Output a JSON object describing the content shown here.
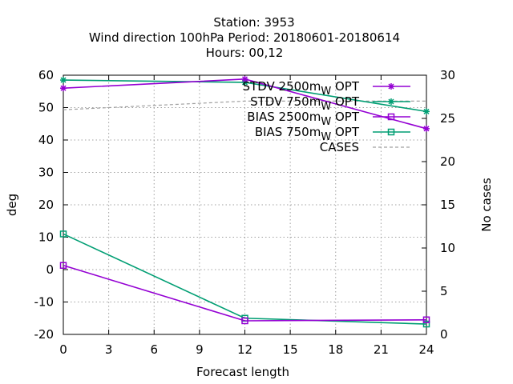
{
  "chart_data": {
    "type": "line",
    "title_lines": [
      "Station:     3953",
      "Wind direction 100hPa   Period: 20180601-20180614",
      "Hours:  00,12"
    ],
    "xlabel": "Forecast length",
    "ylabel": "deg",
    "y2label": "No cases",
    "x_ticks": [
      0,
      3,
      6,
      9,
      12,
      15,
      18,
      21,
      24
    ],
    "y_ticks": [
      -20,
      -10,
      0,
      10,
      20,
      30,
      40,
      50,
      60
    ],
    "y2_ticks": [
      0,
      5,
      10,
      15,
      20,
      25,
      30
    ],
    "xlim": [
      0,
      24
    ],
    "ylim": [
      -20,
      60
    ],
    "y2lim": [
      0,
      30
    ],
    "grid": true,
    "legend_position": "top-right",
    "series": [
      {
        "name": "STDV 2500m",
        "sub": "W",
        "suffix": " OPT",
        "color": "#9400d3",
        "marker": "star",
        "axis": "y",
        "dash": false,
        "x": [
          0,
          12,
          24
        ],
        "y": [
          56,
          58.8,
          43.5
        ]
      },
      {
        "name": "STDV 750m",
        "sub": "W",
        "suffix": " OPT",
        "color": "#009e73",
        "marker": "star",
        "axis": "y",
        "dash": false,
        "x": [
          0,
          12,
          24
        ],
        "y": [
          58.5,
          57.8,
          48.8
        ]
      },
      {
        "name": "BIAS 2500m",
        "sub": "W",
        "suffix": " OPT",
        "color": "#9400d3",
        "marker": "square",
        "axis": "y",
        "dash": false,
        "x": [
          0,
          12,
          24
        ],
        "y": [
          1.3,
          -15.8,
          -15.5
        ]
      },
      {
        "name": "BIAS 750m",
        "sub": "W",
        "suffix": " OPT",
        "color": "#009e73",
        "marker": "square",
        "axis": "y",
        "dash": false,
        "x": [
          0,
          12,
          24
        ],
        "y": [
          11,
          -15,
          -16.8
        ]
      },
      {
        "name": "CASES",
        "sub": "",
        "suffix": "",
        "color": "#a0a0a0",
        "marker": "none",
        "axis": "y2",
        "dash": true,
        "x": [
          0,
          12,
          24
        ],
        "y": [
          26,
          27,
          27
        ]
      }
    ]
  }
}
